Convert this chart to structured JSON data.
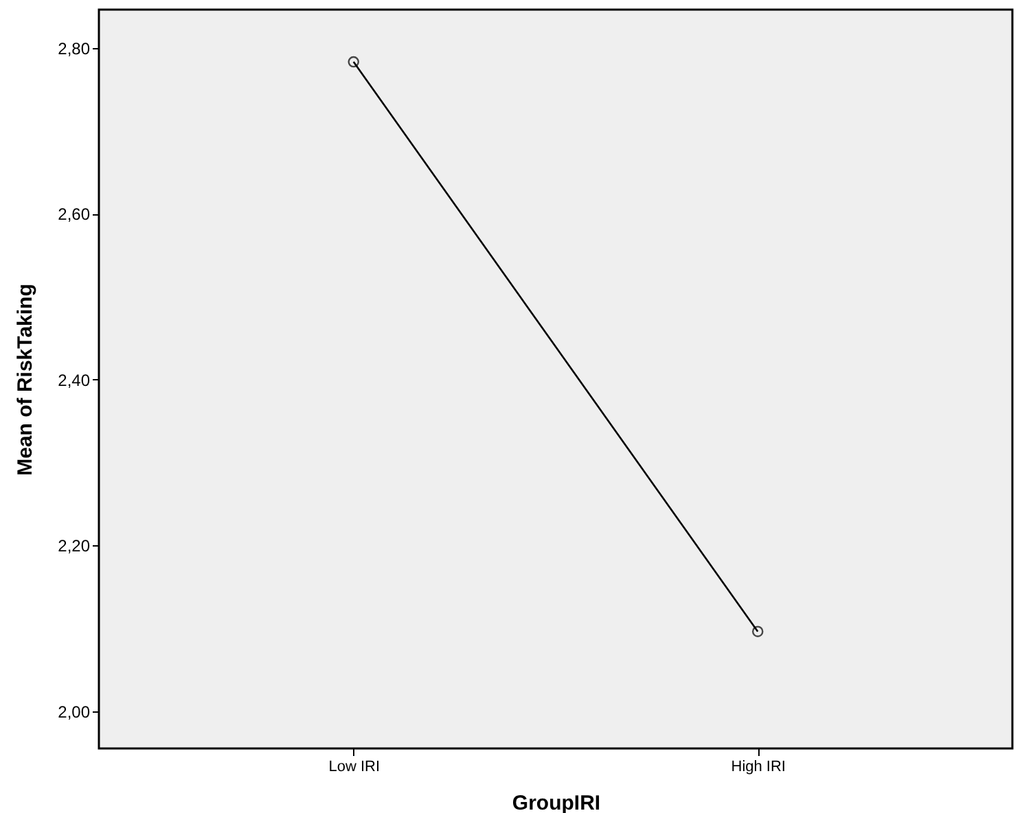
{
  "chart_data": {
    "type": "line",
    "xlabel": "GroupIRI",
    "ylabel": "Mean of RiskTaking",
    "categories": [
      "Low IRI",
      "High IRI"
    ],
    "series": [
      {
        "color": "#000000",
        "values": [
          2.783,
          2.096
        ]
      }
    ],
    "ylim": [
      1.955,
      2.846
    ],
    "yticks": [
      {
        "value": 2.0,
        "label": "2,00"
      },
      {
        "value": 2.2,
        "label": "2,20"
      },
      {
        "value": 2.4,
        "label": "2,40"
      },
      {
        "value": 2.6,
        "label": "2,60"
      },
      {
        "value": 2.8,
        "label": "2,80"
      }
    ],
    "grid": false,
    "legend": false,
    "marker": "circle",
    "line_style": "solid"
  }
}
